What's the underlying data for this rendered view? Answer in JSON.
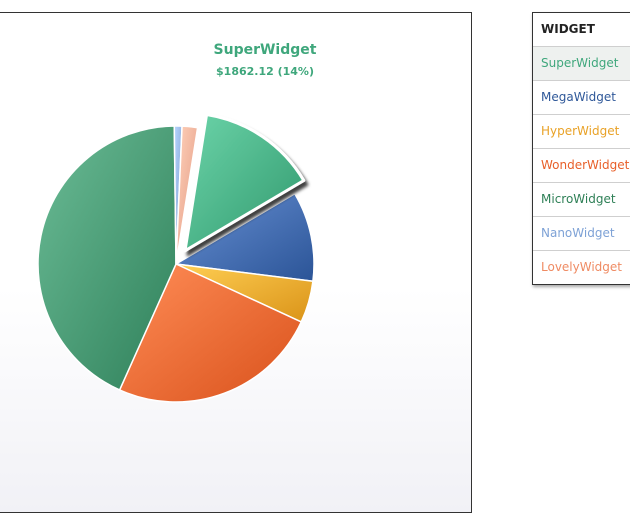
{
  "tooltip": {
    "name": "SuperWidget",
    "value_text": "$1862.12 (14%)"
  },
  "legend": {
    "header": "WIDGET",
    "items": [
      {
        "label": "SuperWidget",
        "color": "#3fa77c"
      },
      {
        "label": "MegaWidget",
        "color": "#2f5899"
      },
      {
        "label": "HyperWidget",
        "color": "#e9a227"
      },
      {
        "label": "WonderWidget",
        "color": "#e8602a"
      },
      {
        "label": "MicroWidget",
        "color": "#2f8057"
      },
      {
        "label": "NanoWidget",
        "color": "#7ea2d6"
      },
      {
        "label": "LovelyWidget",
        "color": "#ef8b63"
      }
    ]
  },
  "chart_data": {
    "type": "pie",
    "highlighted": "SuperWidget",
    "categories": [
      "SuperWidget",
      "MegaWidget",
      "HyperWidget",
      "WonderWidget",
      "MicroWidget",
      "NanoWidget",
      "LovelyWidget"
    ],
    "values": [
      14,
      10.5,
      4.9,
      24.8,
      43.1,
      0.9,
      1.8
    ],
    "colors": [
      "#3fa77c",
      "#3a63a6",
      "#e9a227",
      "#e8602a",
      "#3e8f69",
      "#8aa9db",
      "#f0a58e"
    ]
  }
}
